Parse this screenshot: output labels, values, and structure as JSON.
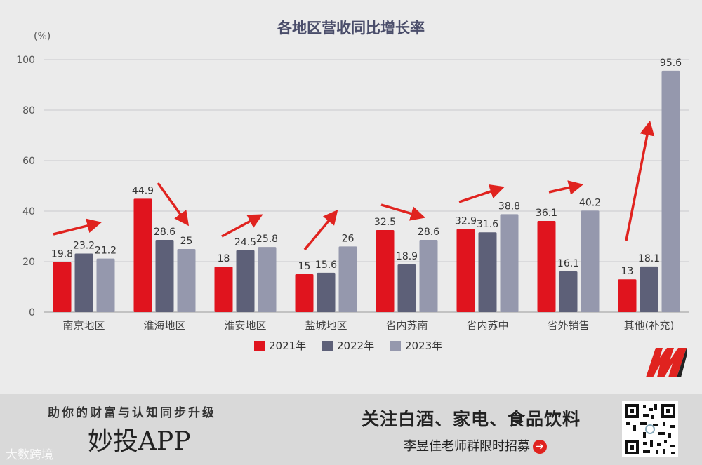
{
  "chart_data": {
    "type": "bar",
    "title": "各地区营收同比增长率",
    "ylabel": "(%)",
    "ylim": [
      0,
      100
    ],
    "yticks": [
      0,
      20,
      40,
      60,
      80,
      100
    ],
    "grid": true,
    "legend_position": "bottom",
    "categories": [
      "南京地区",
      "淮海地区",
      "淮安地区",
      "盐城地区",
      "省内苏南",
      "省内苏中",
      "省外销售",
      "其他(补充)"
    ],
    "series": [
      {
        "name": "2021年",
        "color": "#e0141e",
        "values": [
          19.8,
          44.9,
          18,
          15,
          32.5,
          32.9,
          36.1,
          13
        ]
      },
      {
        "name": "2022年",
        "color": "#5d6078",
        "values": [
          23.2,
          28.6,
          24.5,
          15.6,
          18.9,
          31.6,
          16.1,
          18.1
        ]
      },
      {
        "name": "2023年",
        "color": "#9598ad",
        "values": [
          21.2,
          25,
          25.8,
          26,
          28.6,
          38.8,
          40.2,
          95.6
        ]
      }
    ]
  },
  "footer": {
    "slogan": "助你的财富与认知同步升级",
    "app_name": "妙投APP",
    "watermark": "大数跨境",
    "follow": "关注白酒、家电、食品饮料",
    "recruit": "李昱佳老师群限时招募"
  },
  "colors": {
    "background": "#ebebeb",
    "footer_background": "#d9d9d9",
    "accent_red": "#e0231f"
  },
  "icons": [
    "qr-code-icon",
    "brand-logo-icon",
    "right-arrow-icon",
    "trend-arrow-icon"
  ]
}
